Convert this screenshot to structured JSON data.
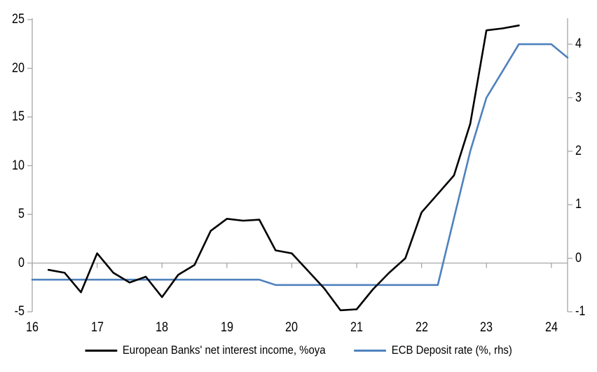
{
  "chart_data": {
    "type": "line",
    "title": "",
    "legend_position": "bottom",
    "grid": "zero-line-only",
    "axis_color": "#A6A6A6",
    "text_color": "#000000",
    "background_color": "#FFFFFF",
    "x_axis": {
      "min": 16,
      "max": 24.25,
      "ticks": [
        16,
        17,
        18,
        19,
        20,
        21,
        22,
        23,
        24
      ]
    },
    "left_axis": {
      "min": -5,
      "max": 25,
      "ticks": [
        25,
        20,
        15,
        10,
        5,
        0,
        -5
      ]
    },
    "right_axis": {
      "min": -1,
      "max": 4.46,
      "ticks": [
        4,
        3,
        2,
        1,
        0,
        -1
      ]
    },
    "series": [
      {
        "name": "European Banks' net interest income, %oya",
        "axis": "left",
        "color": "#000000",
        "points": [
          [
            16.25,
            -0.7
          ],
          [
            16.5,
            -1.0
          ],
          [
            16.75,
            -3.0
          ],
          [
            17.0,
            1.0
          ],
          [
            17.25,
            -1.0
          ],
          [
            17.5,
            -2.0
          ],
          [
            17.75,
            -1.4
          ],
          [
            18.0,
            -3.5
          ],
          [
            18.25,
            -1.2
          ],
          [
            18.5,
            -0.2
          ],
          [
            18.75,
            3.3
          ],
          [
            19.0,
            4.55
          ],
          [
            19.25,
            4.35
          ],
          [
            19.5,
            4.45
          ],
          [
            19.75,
            1.3
          ],
          [
            20.0,
            1.0
          ],
          [
            20.25,
            -0.8
          ],
          [
            20.5,
            -2.6
          ],
          [
            20.75,
            -4.85
          ],
          [
            21.0,
            -4.75
          ],
          [
            21.25,
            -2.7
          ],
          [
            21.5,
            -1.0
          ],
          [
            21.75,
            0.5
          ],
          [
            22.0,
            5.2
          ],
          [
            22.25,
            7.1
          ],
          [
            22.5,
            9.0
          ],
          [
            22.75,
            14.3
          ],
          [
            23.0,
            23.9
          ],
          [
            23.25,
            24.1
          ],
          [
            23.5,
            24.4
          ]
        ]
      },
      {
        "name": "ECB Deposit rate (%, rhs)",
        "axis": "right",
        "color": "#4F81BD",
        "points": [
          [
            16.0,
            -0.4
          ],
          [
            19.5,
            -0.4
          ],
          [
            19.75,
            -0.5
          ],
          [
            22.25,
            -0.5
          ],
          [
            22.5,
            0.75
          ],
          [
            22.75,
            2.0
          ],
          [
            23.0,
            3.0
          ],
          [
            23.25,
            3.5
          ],
          [
            23.5,
            4.0
          ],
          [
            24.0,
            4.0
          ],
          [
            24.25,
            3.75
          ]
        ]
      }
    ]
  }
}
